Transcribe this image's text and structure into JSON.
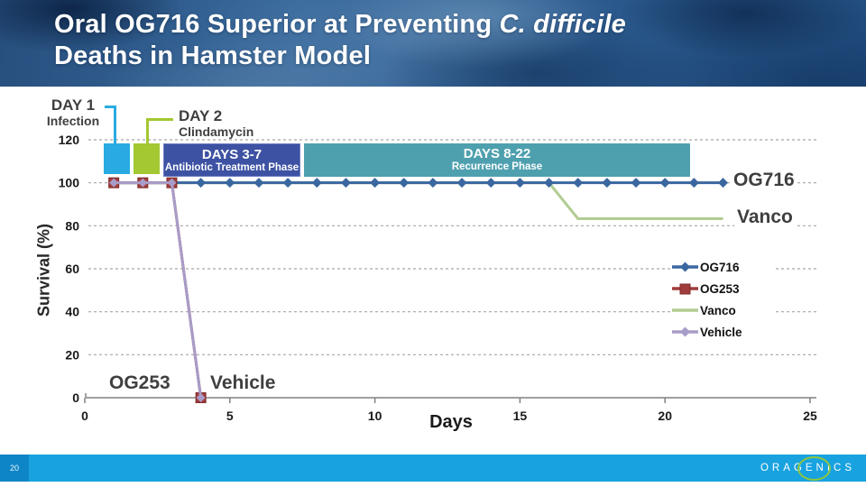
{
  "header": {
    "title_part1": "Oral OG716 Superior at Preventing ",
    "title_italic": "C. difficile",
    "title_line2": "Deaths in Hamster Model"
  },
  "annotations": {
    "day1_title": "DAY 1",
    "day1_sub": "Infection",
    "day2_title": "DAY 2",
    "day2_sub": "Clindamycin",
    "phase1_title": "DAYS 3-7",
    "phase1_sub": "Antibiotic Treatment Phase",
    "phase2_title": "DAYS 8-22",
    "phase2_sub": "Recurrence Phase",
    "og716_label": "OG716",
    "vanco_label": "Vanco",
    "og253_label": "OG253",
    "vehicle_label": "Vehicle"
  },
  "chart_data": {
    "type": "line",
    "title": "",
    "xlabel": "Days",
    "ylabel": "Survival (%)",
    "xlim": [
      0,
      25
    ],
    "ylim": [
      0,
      120
    ],
    "xticks": [
      0,
      5,
      10,
      15,
      20,
      25
    ],
    "yticks": [
      0,
      20,
      40,
      60,
      80,
      100,
      120
    ],
    "grid": "horizontal-dashed",
    "legend_position": "right",
    "series": [
      {
        "name": "OG716",
        "color": "#3a679f",
        "marker": "diamond",
        "points": [
          [
            1,
            100
          ],
          [
            2,
            100
          ],
          [
            3,
            100
          ],
          [
            4,
            100
          ],
          [
            5,
            100
          ],
          [
            6,
            100
          ],
          [
            7,
            100
          ],
          [
            8,
            100
          ],
          [
            9,
            100
          ],
          [
            10,
            100
          ],
          [
            11,
            100
          ],
          [
            12,
            100
          ],
          [
            13,
            100
          ],
          [
            14,
            100
          ],
          [
            15,
            100
          ],
          [
            16,
            100
          ],
          [
            17,
            100
          ],
          [
            18,
            100
          ],
          [
            19,
            100
          ],
          [
            20,
            100
          ],
          [
            21,
            100
          ],
          [
            22,
            100
          ]
        ]
      },
      {
        "name": "OG253",
        "color": "#a13c3c",
        "marker": "square",
        "points": [
          [
            1,
            100
          ],
          [
            2,
            100
          ],
          [
            3,
            100
          ],
          [
            4,
            0
          ]
        ]
      },
      {
        "name": "Vanco",
        "color": "#b2cc92",
        "marker": "none",
        "points": [
          [
            1,
            100
          ],
          [
            16,
            100
          ],
          [
            17,
            83.3
          ],
          [
            22,
            83.3
          ]
        ]
      },
      {
        "name": "Vehicle",
        "color": "#a89cc8",
        "marker": "diamond",
        "points": [
          [
            1,
            100
          ],
          [
            2,
            100
          ],
          [
            3,
            100
          ],
          [
            4,
            0
          ]
        ]
      }
    ]
  },
  "legend": {
    "items": [
      "OG716",
      "OG253",
      "Vanco",
      "Vehicle"
    ]
  },
  "footer": {
    "page_number": "20",
    "logo_text": "ORAGENICS"
  },
  "colors": {
    "phase_day1": "#29abe2",
    "phase_day2": "#a3c832",
    "phase_treatment": "#3d52a3",
    "phase_recurrence": "#4fa0af",
    "footer_bar": "#18a2e0",
    "footer_page_box": "#0d85c6",
    "logo_ring": "#8cc63f",
    "gridline": "#a6a6a6",
    "axis": "#808080"
  }
}
